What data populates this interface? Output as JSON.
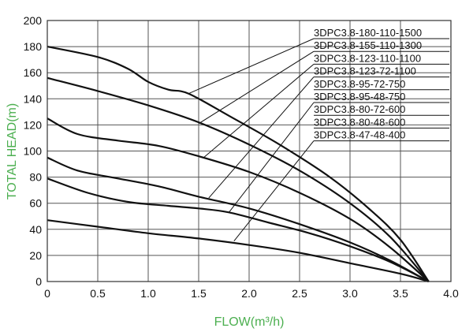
{
  "chart_data": {
    "type": "line",
    "xlabel": "FLOW(m³/h)",
    "ylabel": "TOTAL HEAD(m)",
    "xlim": [
      0,
      4
    ],
    "ylim": [
      0,
      200
    ],
    "x_ticks": [
      "0",
      "0.5",
      "1.0",
      "1.5",
      "2.0",
      "2.5",
      "3.0",
      "3.5",
      "4.0"
    ],
    "y_ticks": [
      "0",
      "20",
      "40",
      "60",
      "80",
      "100",
      "120",
      "140",
      "160",
      "180",
      "200"
    ],
    "grid": true,
    "axis_title_color": "#4caf50",
    "line_color": "#111111",
    "series": [
      {
        "name": "3DPC3.8-180-110-1500",
        "points": [
          [
            0,
            180
          ],
          [
            0.5,
            172
          ],
          [
            0.8,
            163
          ],
          [
            1.0,
            153
          ],
          [
            1.2,
            147
          ],
          [
            1.4,
            144
          ],
          [
            1.8,
            127
          ],
          [
            2.3,
            105
          ],
          [
            2.8,
            80
          ],
          [
            3.2,
            55
          ],
          [
            3.5,
            32
          ],
          [
            3.78,
            0
          ]
        ]
      },
      {
        "name": "3DPC3.8-155-110-1300",
        "points": [
          [
            0,
            156
          ],
          [
            0.5,
            146
          ],
          [
            1.0,
            135
          ],
          [
            1.5,
            122
          ],
          [
            2.0,
            105
          ],
          [
            2.5,
            85
          ],
          [
            3.0,
            60
          ],
          [
            3.4,
            34
          ],
          [
            3.78,
            0
          ]
        ]
      },
      {
        "name": "3DPC3.8-123-110-1100",
        "points": [
          [
            0,
            125
          ],
          [
            0.3,
            113
          ],
          [
            0.7,
            108
          ],
          [
            1.1,
            104
          ],
          [
            1.5,
            96
          ],
          [
            2.0,
            84
          ],
          [
            2.5,
            68
          ],
          [
            3.0,
            48
          ],
          [
            3.4,
            26
          ],
          [
            3.78,
            0
          ]
        ]
      },
      {
        "name": "3DPC3.8-123-72-1100",
        "points": [
          [
            0,
            95
          ],
          [
            0.3,
            85
          ],
          [
            0.7,
            79
          ],
          [
            1.1,
            73
          ],
          [
            1.5,
            65
          ],
          [
            2.0,
            56
          ],
          [
            2.5,
            44
          ],
          [
            3.0,
            30
          ],
          [
            3.4,
            16
          ],
          [
            3.78,
            0
          ]
        ]
      },
      {
        "name": "3DPC3.8-95-72-750",
        "points": [
          [
            0,
            79
          ],
          [
            0.4,
            68
          ],
          [
            0.8,
            61
          ],
          [
            1.2,
            58
          ],
          [
            1.5,
            56
          ],
          [
            1.8,
            53
          ],
          [
            2.2,
            45
          ],
          [
            2.6,
            37
          ],
          [
            3.0,
            27
          ],
          [
            3.4,
            15
          ],
          [
            3.78,
            0
          ]
        ]
      },
      {
        "name": "3DPC3.8-95-48-750",
        "points": []
      },
      {
        "name": "3DPC3.8-80-72-600",
        "points": []
      },
      {
        "name": "3DPC3.8-80-48-600",
        "points": []
      },
      {
        "name": "3DPC3.8-47-48-400",
        "points": [
          [
            0,
            47
          ],
          [
            0.5,
            42
          ],
          [
            1.0,
            37
          ],
          [
            1.5,
            33
          ],
          [
            2.0,
            28
          ],
          [
            2.5,
            22
          ],
          [
            3.0,
            14
          ],
          [
            3.5,
            6
          ],
          [
            3.78,
            0
          ]
        ]
      }
    ],
    "leaders": [
      {
        "label_index": 0,
        "curve_point": [
          1.4,
          144
        ]
      },
      {
        "label_index": 1,
        "curve_point": [
          1.5,
          121
        ]
      },
      {
        "label_index": 2,
        "curve_point": [
          1.55,
          95
        ]
      },
      {
        "label_index": 3,
        "curve_point": [
          1.6,
          64
        ]
      },
      {
        "label_index": 5,
        "curve_point": [
          1.8,
          53
        ]
      },
      {
        "label_index": 8,
        "curve_point": [
          1.85,
          31
        ]
      }
    ]
  }
}
